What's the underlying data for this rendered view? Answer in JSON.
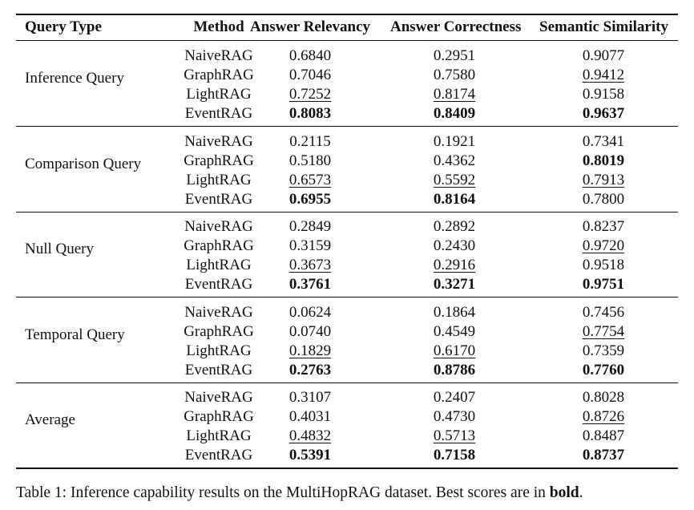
{
  "table": {
    "headers": [
      "Query Type",
      "Method",
      "Answer Relevancy",
      "Answer Correctness",
      "Semantic Similarity"
    ],
    "groups": [
      {
        "query_type": "Inference Query",
        "rows": [
          {
            "method": "NaiveRAG",
            "values": [
              "0.6840",
              "0.2951",
              "0.9077"
            ],
            "style": [
              "",
              "",
              ""
            ]
          },
          {
            "method": "GraphRAG",
            "values": [
              "0.7046",
              "0.7580",
              "0.9412"
            ],
            "style": [
              "",
              "",
              "u"
            ]
          },
          {
            "method": "LightRAG",
            "values": [
              "0.7252",
              "0.8174",
              "0.9158"
            ],
            "style": [
              "u",
              "u",
              ""
            ]
          },
          {
            "method": "EventRAG",
            "values": [
              "0.8083",
              "0.8409",
              "0.9637"
            ],
            "style": [
              "b",
              "b",
              "b"
            ]
          }
        ]
      },
      {
        "query_type": "Comparison Query",
        "rows": [
          {
            "method": "NaiveRAG",
            "values": [
              "0.2115",
              "0.1921",
              "0.7341"
            ],
            "style": [
              "",
              "",
              ""
            ]
          },
          {
            "method": "GraphRAG",
            "values": [
              "0.5180",
              "0.4362",
              "0.8019"
            ],
            "style": [
              "",
              "",
              "b"
            ]
          },
          {
            "method": "LightRAG",
            "values": [
              "0.6573",
              "0.5592",
              "0.7913"
            ],
            "style": [
              "u",
              "u",
              "u"
            ]
          },
          {
            "method": "EventRAG",
            "values": [
              "0.6955",
              "0.8164",
              "0.7800"
            ],
            "style": [
              "b",
              "b",
              ""
            ]
          }
        ]
      },
      {
        "query_type": "Null Query",
        "rows": [
          {
            "method": "NaiveRAG",
            "values": [
              "0.2849",
              "0.2892",
              "0.8237"
            ],
            "style": [
              "",
              "",
              ""
            ]
          },
          {
            "method": "GraphRAG",
            "values": [
              "0.3159",
              "0.2430",
              "0.9720"
            ],
            "style": [
              "",
              "",
              "u"
            ]
          },
          {
            "method": "LightRAG",
            "values": [
              "0.3673",
              "0.2916",
              "0.9518"
            ],
            "style": [
              "u",
              "u",
              ""
            ]
          },
          {
            "method": "EventRAG",
            "values": [
              "0.3761",
              "0.3271",
              "0.9751"
            ],
            "style": [
              "b",
              "b",
              "b"
            ]
          }
        ]
      },
      {
        "query_type": "Temporal Query",
        "rows": [
          {
            "method": "NaiveRAG",
            "values": [
              "0.0624",
              "0.1864",
              "0.7456"
            ],
            "style": [
              "",
              "",
              ""
            ]
          },
          {
            "method": "GraphRAG",
            "values": [
              "0.0740",
              "0.4549",
              "0.7754"
            ],
            "style": [
              "",
              "",
              "u"
            ]
          },
          {
            "method": "LightRAG",
            "values": [
              "0.1829",
              "0.6170",
              "0.7359"
            ],
            "style": [
              "u",
              "u",
              ""
            ]
          },
          {
            "method": "EventRAG",
            "values": [
              "0.2763",
              "0.8786",
              "0.7760"
            ],
            "style": [
              "b",
              "b",
              "b"
            ]
          }
        ]
      },
      {
        "query_type": "Average",
        "rows": [
          {
            "method": "NaiveRAG",
            "values": [
              "0.3107",
              "0.2407",
              "0.8028"
            ],
            "style": [
              "",
              "",
              ""
            ]
          },
          {
            "method": "GraphRAG",
            "values": [
              "0.4031",
              "0.4730",
              "0.8726"
            ],
            "style": [
              "",
              "",
              "u"
            ]
          },
          {
            "method": "LightRAG",
            "values": [
              "0.4832",
              "0.5713",
              "0.8487"
            ],
            "style": [
              "u",
              "u",
              ""
            ]
          },
          {
            "method": "EventRAG",
            "values": [
              "0.5391",
              "0.7158",
              "0.8737"
            ],
            "style": [
              "b",
              "b",
              "b"
            ]
          }
        ]
      }
    ]
  },
  "caption": {
    "prefix": "Table 1:  Inference capability results on the MultiHopRAG dataset. Best scores are in ",
    "bold_word": "bold",
    "suffix": "."
  }
}
